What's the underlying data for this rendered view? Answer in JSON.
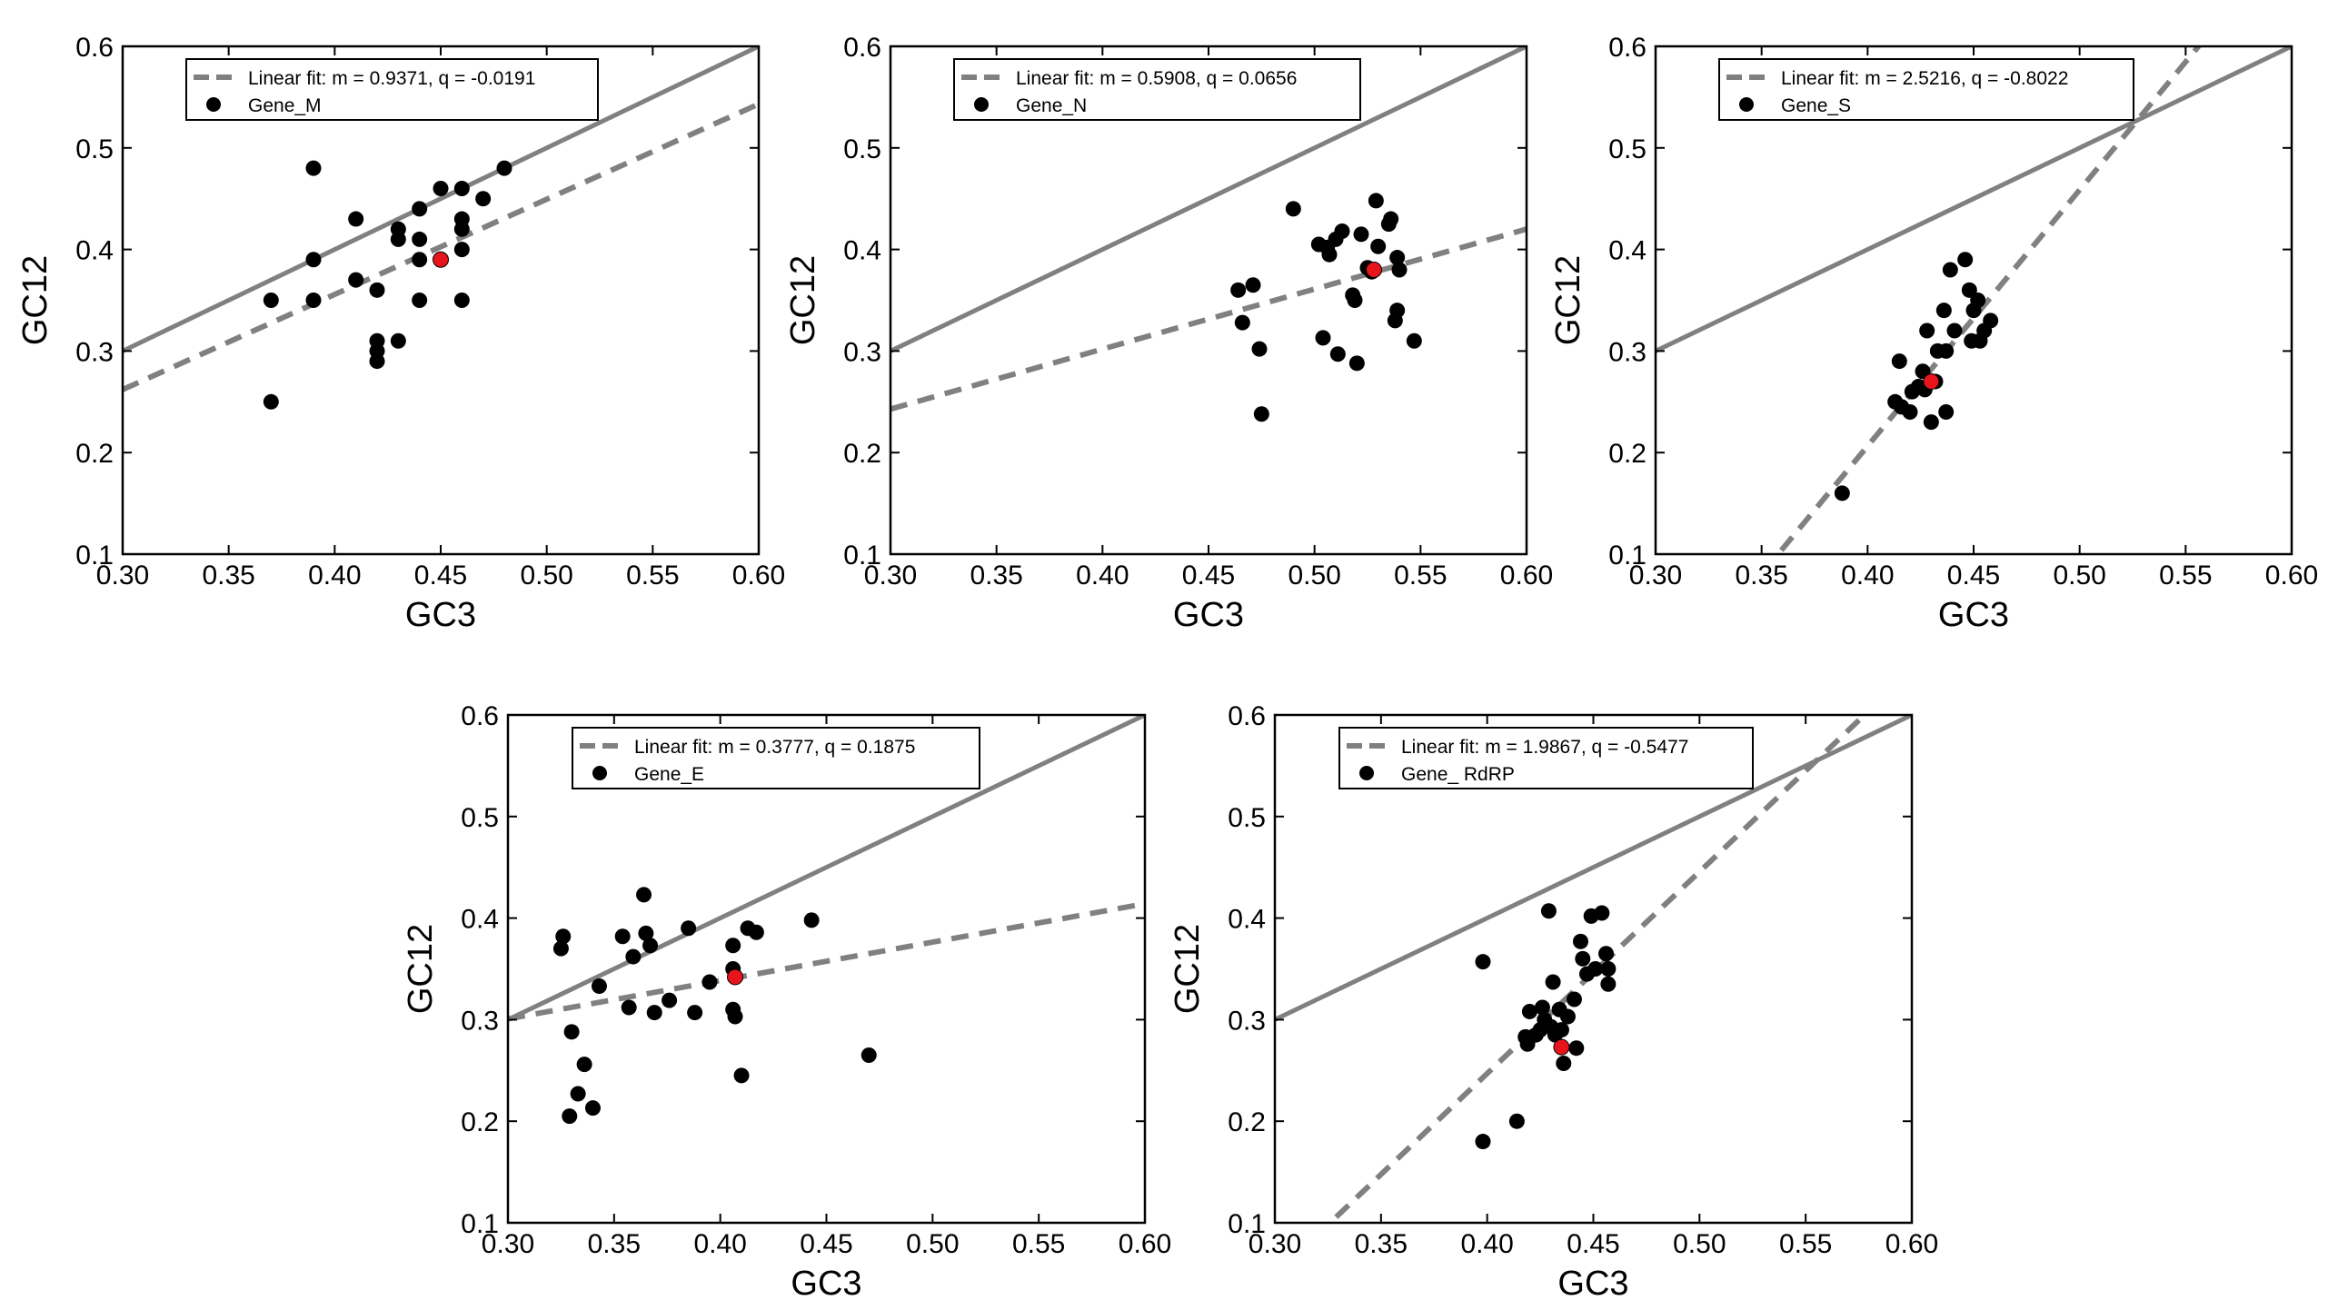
{
  "chart_data": [
    {
      "type": "scatter",
      "xlabel": "GC3",
      "ylabel": "GC12",
      "xlim": [
        0.3,
        0.6
      ],
      "ylim": [
        0.1,
        0.6
      ],
      "xticks": [
        "0.30",
        "0.35",
        "0.40",
        "0.45",
        "0.50",
        "0.55",
        "0.60"
      ],
      "yticks": [
        "0.1",
        "0.2",
        "0.3",
        "0.4",
        "0.5",
        "0.6"
      ],
      "legend": {
        "fit_label": "Linear fit: m = 0.9371, q = -0.0191",
        "series_label": "Gene_M",
        "placement": "top-left"
      },
      "fit": {
        "m": 0.9371,
        "q": -0.0191
      },
      "reference_line": {
        "m": 1.0,
        "q": 0.0
      },
      "series": [
        {
          "name": "Gene_M",
          "points": [
            [
              0.37,
              0.35
            ],
            [
              0.37,
              0.25
            ],
            [
              0.39,
              0.48
            ],
            [
              0.39,
              0.39
            ],
            [
              0.39,
              0.35
            ],
            [
              0.41,
              0.43
            ],
            [
              0.41,
              0.37
            ],
            [
              0.42,
              0.36
            ],
            [
              0.42,
              0.31
            ],
            [
              0.42,
              0.3
            ],
            [
              0.42,
              0.29
            ],
            [
              0.43,
              0.42
            ],
            [
              0.43,
              0.41
            ],
            [
              0.43,
              0.31
            ],
            [
              0.44,
              0.44
            ],
            [
              0.44,
              0.41
            ],
            [
              0.44,
              0.39
            ],
            [
              0.44,
              0.35
            ],
            [
              0.45,
              0.46
            ],
            [
              0.46,
              0.46
            ],
            [
              0.46,
              0.43
            ],
            [
              0.46,
              0.42
            ],
            [
              0.46,
              0.4
            ],
            [
              0.46,
              0.35
            ],
            [
              0.47,
              0.45
            ],
            [
              0.48,
              0.48
            ]
          ]
        }
      ],
      "highlight": [
        0.45,
        0.39
      ]
    },
    {
      "type": "scatter",
      "xlabel": "GC3",
      "ylabel": "GC12",
      "xlim": [
        0.3,
        0.6
      ],
      "ylim": [
        0.1,
        0.6
      ],
      "xticks": [
        "0.30",
        "0.35",
        "0.40",
        "0.45",
        "0.50",
        "0.55",
        "0.60"
      ],
      "yticks": [
        "0.1",
        "0.2",
        "0.3",
        "0.4",
        "0.5",
        "0.6"
      ],
      "legend": {
        "fit_label": "Linear fit: m = 0.5908, q = 0.0656",
        "series_label": "Gene_N",
        "placement": "top-left"
      },
      "fit": {
        "m": 0.5908,
        "q": 0.0656
      },
      "reference_line": {
        "m": 1.0,
        "q": 0.0
      },
      "series": [
        {
          "name": "Gene_N",
          "points": [
            [
              0.464,
              0.36
            ],
            [
              0.466,
              0.328
            ],
            [
              0.471,
              0.365
            ],
            [
              0.474,
              0.302
            ],
            [
              0.475,
              0.238
            ],
            [
              0.49,
              0.44
            ],
            [
              0.502,
              0.405
            ],
            [
              0.504,
              0.313
            ],
            [
              0.506,
              0.402
            ],
            [
              0.507,
              0.395
            ],
            [
              0.51,
              0.41
            ],
            [
              0.511,
              0.297
            ],
            [
              0.513,
              0.418
            ],
            [
              0.518,
              0.355
            ],
            [
              0.519,
              0.35
            ],
            [
              0.52,
              0.288
            ],
            [
              0.522,
              0.415
            ],
            [
              0.525,
              0.382
            ],
            [
              0.527,
              0.378
            ],
            [
              0.529,
              0.448
            ],
            [
              0.53,
              0.403
            ],
            [
              0.535,
              0.425
            ],
            [
              0.536,
              0.43
            ],
            [
              0.538,
              0.33
            ],
            [
              0.539,
              0.392
            ],
            [
              0.539,
              0.34
            ],
            [
              0.54,
              0.38
            ],
            [
              0.547,
              0.31
            ]
          ]
        }
      ],
      "highlight": [
        0.528,
        0.38
      ]
    },
    {
      "type": "scatter",
      "xlabel": "GC3",
      "ylabel": "GC12",
      "xlim": [
        0.3,
        0.6
      ],
      "ylim": [
        0.1,
        0.6
      ],
      "xticks": [
        "0.30",
        "0.35",
        "0.40",
        "0.45",
        "0.50",
        "0.55",
        "0.60"
      ],
      "yticks": [
        "0.1",
        "0.2",
        "0.3",
        "0.4",
        "0.5",
        "0.6"
      ],
      "legend": {
        "fit_label": "Linear fit: m = 2.5216, q = -0.8022",
        "series_label": "Gene_S",
        "placement": "top-left"
      },
      "fit": {
        "m": 2.5216,
        "q": -0.8022
      },
      "reference_line": {
        "m": 1.0,
        "q": 0.0
      },
      "series": [
        {
          "name": "Gene_S",
          "points": [
            [
              0.388,
              0.16
            ],
            [
              0.413,
              0.25
            ],
            [
              0.415,
              0.29
            ],
            [
              0.416,
              0.245
            ],
            [
              0.42,
              0.24
            ],
            [
              0.421,
              0.26
            ],
            [
              0.424,
              0.265
            ],
            [
              0.426,
              0.28
            ],
            [
              0.427,
              0.262
            ],
            [
              0.428,
              0.32
            ],
            [
              0.43,
              0.23
            ],
            [
              0.432,
              0.27
            ],
            [
              0.433,
              0.3
            ],
            [
              0.436,
              0.34
            ],
            [
              0.437,
              0.24
            ],
            [
              0.437,
              0.3
            ],
            [
              0.439,
              0.38
            ],
            [
              0.441,
              0.32
            ],
            [
              0.446,
              0.39
            ],
            [
              0.448,
              0.36
            ],
            [
              0.449,
              0.31
            ],
            [
              0.45,
              0.34
            ],
            [
              0.452,
              0.35
            ],
            [
              0.453,
              0.31
            ],
            [
              0.455,
              0.32
            ],
            [
              0.458,
              0.33
            ]
          ]
        }
      ],
      "highlight": [
        0.43,
        0.27
      ]
    },
    {
      "type": "scatter",
      "xlabel": "GC3",
      "ylabel": "GC12",
      "xlim": [
        0.3,
        0.6
      ],
      "ylim": [
        0.1,
        0.6
      ],
      "xticks": [
        "0.30",
        "0.35",
        "0.40",
        "0.45",
        "0.50",
        "0.55",
        "0.60"
      ],
      "yticks": [
        "0.1",
        "0.2",
        "0.3",
        "0.4",
        "0.5",
        "0.6"
      ],
      "legend": {
        "fit_label": "Linear fit: m = 0.3777, q = 0.1875",
        "series_label": "Gene_E",
        "placement": "top-center"
      },
      "fit": {
        "m": 0.3777,
        "q": 0.1875
      },
      "reference_line": {
        "m": 1.0,
        "q": 0.0
      },
      "series": [
        {
          "name": "Gene_E",
          "points": [
            [
              0.325,
              0.37
            ],
            [
              0.326,
              0.382
            ],
            [
              0.329,
              0.205
            ],
            [
              0.33,
              0.288
            ],
            [
              0.333,
              0.227
            ],
            [
              0.336,
              0.256
            ],
            [
              0.34,
              0.213
            ],
            [
              0.343,
              0.333
            ],
            [
              0.354,
              0.382
            ],
            [
              0.357,
              0.312
            ],
            [
              0.359,
              0.362
            ],
            [
              0.364,
              0.423
            ],
            [
              0.365,
              0.385
            ],
            [
              0.367,
              0.373
            ],
            [
              0.369,
              0.307
            ],
            [
              0.376,
              0.319
            ],
            [
              0.385,
              0.39
            ],
            [
              0.388,
              0.307
            ],
            [
              0.395,
              0.337
            ],
            [
              0.406,
              0.373
            ],
            [
              0.406,
              0.35
            ],
            [
              0.406,
              0.31
            ],
            [
              0.407,
              0.303
            ],
            [
              0.41,
              0.245
            ],
            [
              0.413,
              0.39
            ],
            [
              0.417,
              0.386
            ],
            [
              0.443,
              0.398
            ],
            [
              0.47,
              0.265
            ]
          ]
        }
      ],
      "highlight": [
        0.407,
        0.342
      ]
    },
    {
      "type": "scatter",
      "xlabel": "GC3",
      "ylabel": "GC12",
      "xlim": [
        0.3,
        0.6
      ],
      "ylim": [
        0.1,
        0.6
      ],
      "xticks": [
        "0.30",
        "0.35",
        "0.40",
        "0.45",
        "0.50",
        "0.55",
        "0.60"
      ],
      "yticks": [
        "0.1",
        "0.2",
        "0.3",
        "0.4",
        "0.5",
        "0.6"
      ],
      "legend": {
        "fit_label": "Linear fit: m = 1.9867, q = -0.5477",
        "series_label": "Gene_ RdRP",
        "placement": "top-left"
      },
      "fit": {
        "m": 1.9867,
        "q": -0.5477
      },
      "reference_line": {
        "m": 1.0,
        "q": 0.0
      },
      "series": [
        {
          "name": "Gene_ RdRP",
          "points": [
            [
              0.398,
              0.357
            ],
            [
              0.398,
              0.18
            ],
            [
              0.414,
              0.2
            ],
            [
              0.418,
              0.283
            ],
            [
              0.419,
              0.276
            ],
            [
              0.42,
              0.308
            ],
            [
              0.423,
              0.285
            ],
            [
              0.425,
              0.29
            ],
            [
              0.426,
              0.312
            ],
            [
              0.427,
              0.3
            ],
            [
              0.429,
              0.407
            ],
            [
              0.43,
              0.293
            ],
            [
              0.431,
              0.337
            ],
            [
              0.432,
              0.285
            ],
            [
              0.434,
              0.31
            ],
            [
              0.435,
              0.29
            ],
            [
              0.436,
              0.257
            ],
            [
              0.438,
              0.303
            ],
            [
              0.441,
              0.32
            ],
            [
              0.442,
              0.272
            ],
            [
              0.444,
              0.377
            ],
            [
              0.445,
              0.36
            ],
            [
              0.447,
              0.345
            ],
            [
              0.449,
              0.402
            ],
            [
              0.451,
              0.35
            ],
            [
              0.454,
              0.405
            ],
            [
              0.456,
              0.365
            ],
            [
              0.457,
              0.35
            ],
            [
              0.457,
              0.335
            ]
          ]
        }
      ],
      "highlight": [
        0.435,
        0.273
      ]
    }
  ]
}
